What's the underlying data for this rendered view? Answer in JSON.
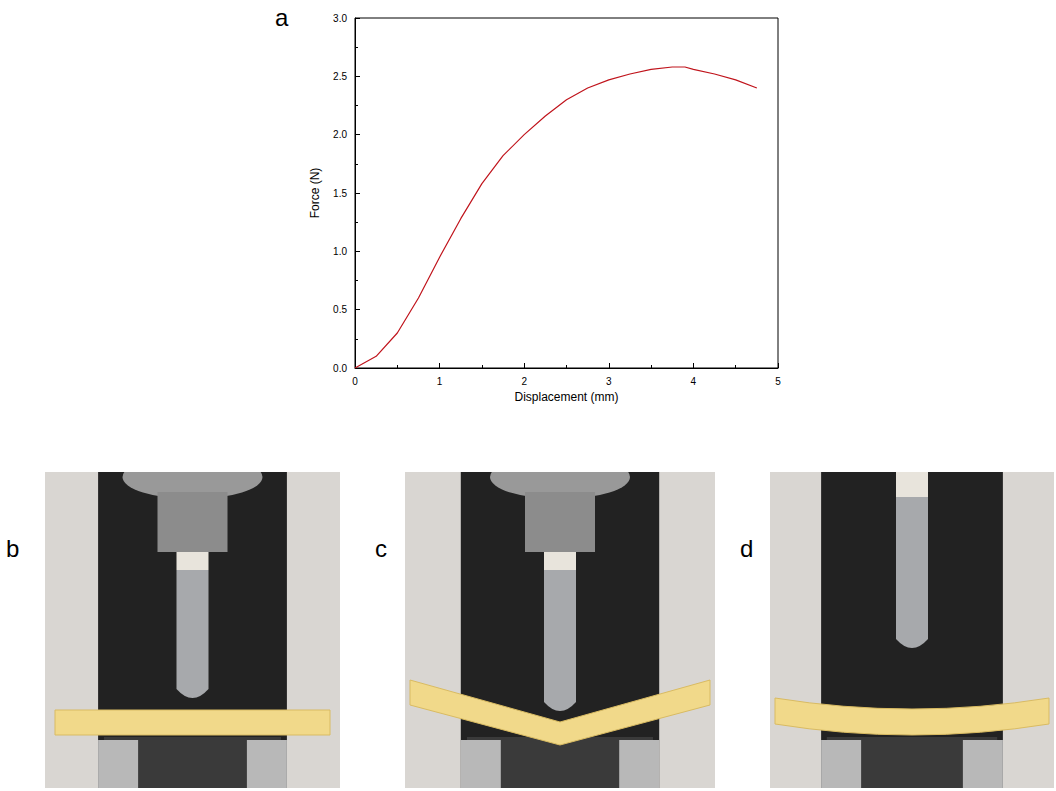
{
  "panel_labels": [
    "a",
    "b",
    "c",
    "d"
  ],
  "chart_data": {
    "type": "line",
    "x_label": "Displacement (mm)",
    "y_label": "Force (N)",
    "x": [
      0,
      0.25,
      0.5,
      0.75,
      1.0,
      1.25,
      1.5,
      1.75,
      2.0,
      2.25,
      2.5,
      2.75,
      3.0,
      3.25,
      3.5,
      3.75,
      3.9,
      4.0,
      4.25,
      4.5,
      4.75
    ],
    "series": [
      {
        "color": "#c0141c",
        "values": [
          0,
          0.1,
          0.3,
          0.6,
          0.95,
          1.28,
          1.58,
          1.82,
          2.0,
          2.16,
          2.3,
          2.4,
          2.47,
          2.52,
          2.56,
          2.58,
          2.58,
          2.56,
          2.52,
          2.47,
          2.4
        ]
      }
    ],
    "xlim": [
      0,
      5
    ],
    "xticks": [
      0,
      1,
      2,
      3,
      4,
      5
    ],
    "ylim": [
      0,
      3
    ],
    "yticks": [
      {
        "value": 0,
        "label": "0.0"
      },
      0.5,
      {
        "value": 1,
        "label": "1.0"
      },
      1.5,
      {
        "value": 2,
        "label": "2.0"
      },
      2.5,
      {
        "value": 3,
        "label": "3.0"
      }
    ],
    "grid": false
  }
}
